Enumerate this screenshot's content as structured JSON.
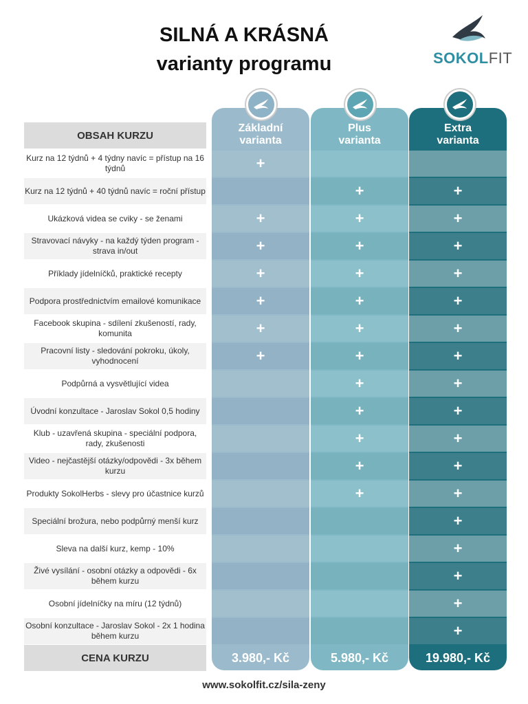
{
  "title": {
    "line1": "SILNÁ A KRÁSNÁ",
    "line2": "varianty programu"
  },
  "logo": {
    "part1": "SOKOL",
    "part2": "FIT"
  },
  "colors": {
    "basic": "#9bbbcc",
    "plus": "#7fb8c4",
    "extra": "#1e6f7d"
  },
  "table": {
    "header_label": "OBSAH KURZU",
    "columns": [
      {
        "line1": "Základní",
        "line2": "varianta"
      },
      {
        "line1": "Plus",
        "line2": "varianta"
      },
      {
        "line1": "Extra",
        "line2": "varianta"
      }
    ],
    "plus_symbol": "+",
    "rows": [
      {
        "text": "Kurz na 12 týdnů + 4 týdny navíc = přístup na 16 týdnů",
        "basic": true,
        "plus": false,
        "extra": false
      },
      {
        "text": "Kurz na 12 týdnů + 40 týdnů navíc = roční přístup",
        "basic": false,
        "plus": true,
        "extra": true
      },
      {
        "text": "Ukázková videa se cviky - se ženami",
        "basic": true,
        "plus": true,
        "extra": true
      },
      {
        "text": "Stravovací návyky - na každý týden program - strava in/out",
        "basic": true,
        "plus": true,
        "extra": true
      },
      {
        "text": "Příklady jídelníčků, praktické recepty",
        "basic": true,
        "plus": true,
        "extra": true
      },
      {
        "text": "Podpora prostřednictvím emailové komunikace",
        "basic": true,
        "plus": true,
        "extra": true
      },
      {
        "text": "Facebook skupina - sdílení zkušeností, rady, komunita",
        "basic": true,
        "plus": true,
        "extra": true
      },
      {
        "text": "Pracovní listy - sledování pokroku, úkoly, vyhodnocení",
        "basic": true,
        "plus": true,
        "extra": true
      },
      {
        "text": "Podpůrná a vysvětlující videa",
        "basic": false,
        "plus": true,
        "extra": true
      },
      {
        "text": "Úvodní konzultace - Jaroslav Sokol 0,5 hodiny",
        "basic": false,
        "plus": true,
        "extra": true
      },
      {
        "text": "Klub - uzavřená skupina - speciální podpora, rady, zkušenosti",
        "basic": false,
        "plus": true,
        "extra": true
      },
      {
        "text": "Video - nejčastější otázky/odpovědi - 3x během kurzu",
        "basic": false,
        "plus": true,
        "extra": true
      },
      {
        "text": "Produkty SokolHerbs - slevy pro účastnice kurzů",
        "basic": false,
        "plus": true,
        "extra": true
      },
      {
        "text": "Speciální brožura, nebo podpůrný menší kurz",
        "basic": false,
        "plus": false,
        "extra": true
      },
      {
        "text": "Sleva na další kurz, kemp - 10%",
        "basic": false,
        "plus": false,
        "extra": true
      },
      {
        "text": "Živé vysílání - osobní otázky a odpovědi - 6x během kurzu",
        "basic": false,
        "plus": false,
        "extra": true
      },
      {
        "text": "Osobní jídelníčky na míru (12 týdnů)",
        "basic": false,
        "plus": false,
        "extra": true
      },
      {
        "text": "Osobní konzultace - Jaroslav Sokol - 2x 1 hodina během kurzu",
        "basic": false,
        "plus": false,
        "extra": true
      }
    ],
    "price_label": "CENA KURZU",
    "prices": [
      "3.980,- Kč",
      "5.980,- Kč",
      "19.980,- Kč"
    ]
  },
  "footer": "www.sokolfit.cz/sila-zeny"
}
